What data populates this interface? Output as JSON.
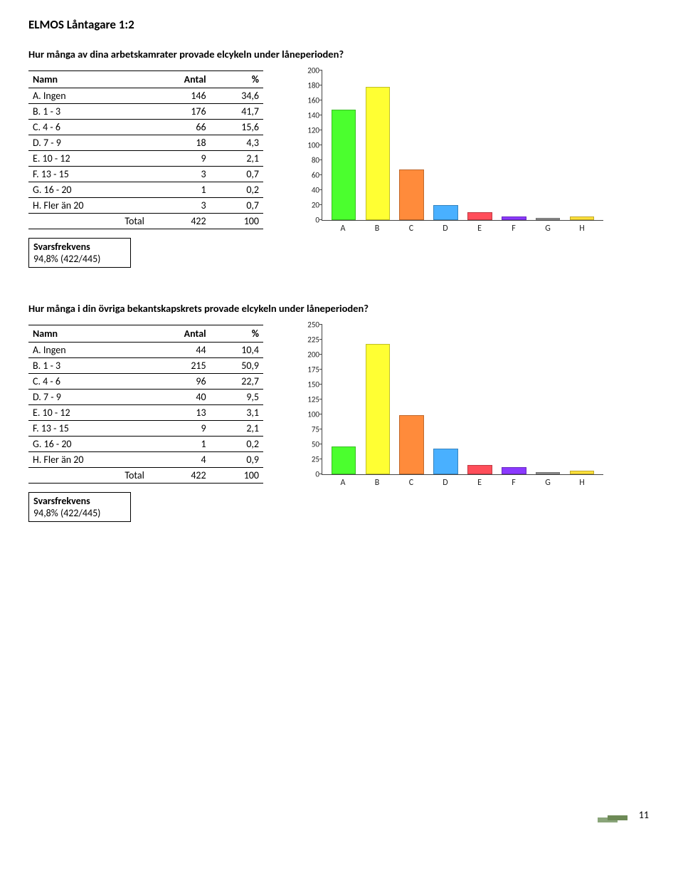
{
  "page_title": "ELMOS Låntagare 1:2",
  "page_number": "11",
  "table_headers": {
    "name": "Namn",
    "antal": "Antal",
    "pct": "%"
  },
  "total_label": "Total",
  "svarsfrekvens_label": "Svarsfrekvens",
  "sections": [
    {
      "question": "Hur många av dina arbetskamrater provade elcykeln under låneperioden?",
      "rows": [
        {
          "name": "A. Ingen",
          "antal": "146",
          "pct": "34,6"
        },
        {
          "name": "B. 1 - 3",
          "antal": "176",
          "pct": "41,7"
        },
        {
          "name": "C. 4 - 6",
          "antal": "66",
          "pct": "15,6"
        },
        {
          "name": "D. 7 - 9",
          "antal": "18",
          "pct": "4,3"
        },
        {
          "name": "E. 10 - 12",
          "antal": "9",
          "pct": "2,1"
        },
        {
          "name": "F. 13 - 15",
          "antal": "3",
          "pct": "0,7"
        },
        {
          "name": "G. 16 - 20",
          "antal": "1",
          "pct": "0,2"
        },
        {
          "name": "H. Fler än 20",
          "antal": "3",
          "pct": "0,7"
        }
      ],
      "total": {
        "antal": "422",
        "pct": "100"
      },
      "svarsfrekvens": "94,8% (422/445)",
      "chart": {
        "type": "bar",
        "categories": [
          "A",
          "B",
          "C",
          "D",
          "E",
          "F",
          "G",
          "H"
        ],
        "values": [
          146,
          176,
          66,
          18,
          9,
          3,
          1,
          3
        ],
        "bar_colors": [
          "#4bff2e",
          "#ffff33",
          "#ff8b3b",
          "#49b0ff",
          "#ff4e5a",
          "#8b39ff",
          "#999999",
          "#ffe03b"
        ],
        "ylim": [
          0,
          200
        ],
        "ytick_step": 20,
        "background_color": "#ffffff",
        "axis_color": "#444444",
        "label_fontsize": 11,
        "bar_width": 0.72
      }
    },
    {
      "question": "Hur många i din övriga bekantskapskrets provade elcykeln under låneperioden?",
      "rows": [
        {
          "name": "A. Ingen",
          "antal": "44",
          "pct": "10,4"
        },
        {
          "name": "B. 1 - 3",
          "antal": "215",
          "pct": "50,9"
        },
        {
          "name": "C. 4 - 6",
          "antal": "96",
          "pct": "22,7"
        },
        {
          "name": "D. 7 - 9",
          "antal": "40",
          "pct": "9,5"
        },
        {
          "name": "E. 10 - 12",
          "antal": "13",
          "pct": "3,1"
        },
        {
          "name": "F. 13 - 15",
          "antal": "9",
          "pct": "2,1"
        },
        {
          "name": "G. 16 - 20",
          "antal": "1",
          "pct": "0,2"
        },
        {
          "name": "H. Fler än 20",
          "antal": "4",
          "pct": "0,9"
        }
      ],
      "total": {
        "antal": "422",
        "pct": "100"
      },
      "svarsfrekvens": "94,8% (422/445)",
      "chart": {
        "type": "bar",
        "categories": [
          "A",
          "B",
          "C",
          "D",
          "E",
          "F",
          "G",
          "H"
        ],
        "values": [
          44,
          215,
          96,
          40,
          13,
          9,
          1,
          4
        ],
        "bar_colors": [
          "#4bff2e",
          "#ffff33",
          "#ff8b3b",
          "#49b0ff",
          "#ff4e5a",
          "#8b39ff",
          "#999999",
          "#ffe03b"
        ],
        "ylim": [
          0,
          250
        ],
        "ytick_step": 25,
        "background_color": "#ffffff",
        "axis_color": "#444444",
        "label_fontsize": 11,
        "bar_width": 0.72
      }
    }
  ]
}
